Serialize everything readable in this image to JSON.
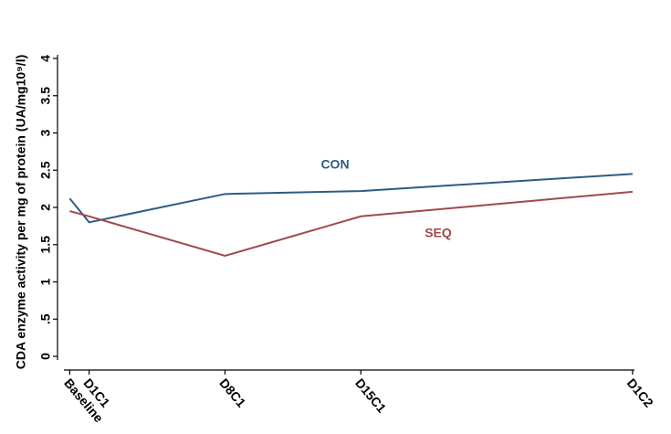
{
  "chart_data": {
    "type": "line",
    "y_label": "CDA enzyme activity per mg of protein (UA/mg10⁹/l)",
    "x": [
      0,
      1,
      8,
      15,
      29
    ],
    "xlim": [
      -0.3,
      29.1
    ],
    "xticks": [
      {
        "value": 0,
        "label": "Baseline"
      },
      {
        "value": 1,
        "label": "D1C1"
      },
      {
        "value": 8,
        "label": "D8C1"
      },
      {
        "value": 15,
        "label": "D15C1"
      },
      {
        "value": 29,
        "label": "D1C2"
      }
    ],
    "ylim": [
      0,
      4
    ],
    "yticks": [
      0,
      {
        "value": 0.5,
        "label": ".5"
      },
      1,
      1.5,
      2,
      2.5,
      3,
      3.5,
      4
    ],
    "series": [
      {
        "name": "CON",
        "color": "#2e5b84",
        "values": [
          2.12,
          1.8,
          2.18,
          2.22,
          2.45
        ]
      },
      {
        "name": "SEQ",
        "color": "#a0484f",
        "values": [
          1.95,
          1.88,
          1.35,
          1.88,
          2.21
        ]
      }
    ]
  }
}
